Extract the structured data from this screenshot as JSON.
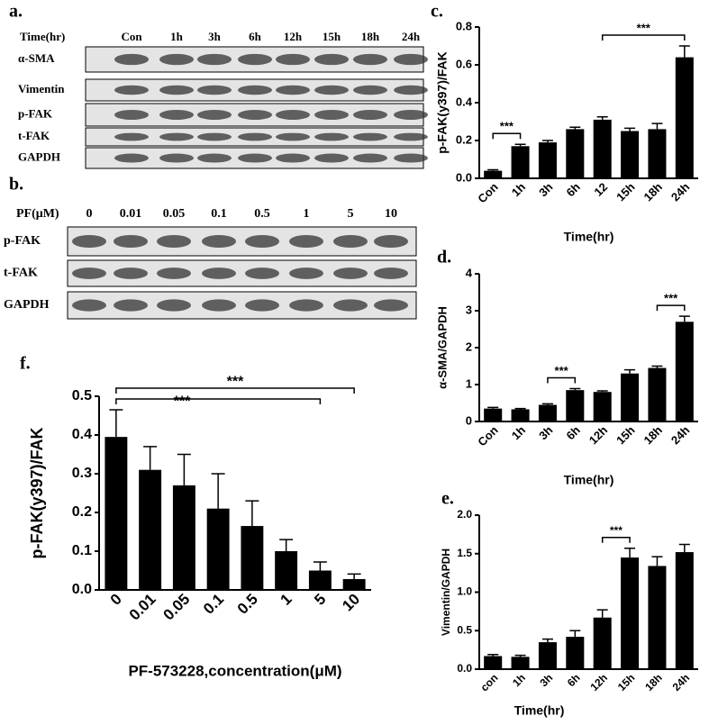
{
  "blots": [
    {
      "label": "a.",
      "header": "Time(hr)",
      "columns": [
        "Con",
        "1h",
        "3h",
        "6h",
        "12h",
        "15h",
        "18h",
        "24h"
      ],
      "rows": [
        "α-SMA",
        "Vimentin",
        "p-FAK",
        "t-FAK",
        "GAPDH"
      ]
    },
    {
      "label": "b.",
      "header": "PF(μM)",
      "columns": [
        "0",
        "0.01",
        "0.05",
        "0.1",
        "0.5",
        "1",
        "5",
        "10"
      ],
      "rows": [
        "p-FAK",
        "t-FAK",
        "GAPDH"
      ]
    }
  ],
  "chart_data": [
    {
      "type": "bar",
      "label": "c.",
      "categories": [
        "Con",
        "1h",
        "3h",
        "6h",
        "12",
        "15h",
        "18h",
        "24h"
      ],
      "values": [
        0.04,
        0.17,
        0.19,
        0.26,
        0.31,
        0.25,
        0.26,
        0.64
      ],
      "errors": [
        0.005,
        0.01,
        0.01,
        0.01,
        0.015,
        0.015,
        0.03,
        0.06
      ],
      "color": "#000000",
      "ylim": [
        0,
        0.8
      ],
      "yticks": [
        {
          "value": 0,
          "label": "0.0"
        },
        0.2,
        0.4,
        0.6,
        0.8
      ],
      "x_label": "Time(hr)",
      "y_label": "p-FAK(y397)/FAK",
      "annotations": [
        {
          "text": "***",
          "from": "Con",
          "to": "1h"
        },
        {
          "text": "***",
          "from": "12",
          "to": "24h"
        }
      ]
    },
    {
      "type": "bar",
      "label": "d.",
      "categories": [
        "Con",
        "1h",
        "3h",
        "6h",
        "12h",
        "15h",
        "18h",
        "24h"
      ],
      "values": [
        0.35,
        0.33,
        0.45,
        0.85,
        0.8,
        1.3,
        1.45,
        2.7
      ],
      "errors": [
        0.03,
        0.02,
        0.03,
        0.04,
        0.03,
        0.1,
        0.05,
        0.15
      ],
      "color": "#000000",
      "ylim": [
        0,
        4
      ],
      "yticks": [
        0,
        1,
        2,
        3,
        4
      ],
      "x_label": "Time(hr)",
      "y_label": "α-SMA/GAPDH",
      "annotations": [
        {
          "text": "***",
          "from": "3h",
          "to": "6h"
        },
        {
          "text": "***",
          "from": "18h",
          "to": "24h"
        }
      ]
    },
    {
      "type": "bar",
      "label": "e.",
      "categories": [
        "con",
        "1h",
        "3h",
        "6h",
        "12h",
        "15h",
        "18h",
        "24h"
      ],
      "values": [
        0.17,
        0.16,
        0.35,
        0.42,
        0.67,
        1.45,
        1.34,
        1.52
      ],
      "errors": [
        0.02,
        0.02,
        0.04,
        0.08,
        0.1,
        0.12,
        0.12,
        0.1
      ],
      "color": "#000000",
      "ylim": [
        0,
        2
      ],
      "yticks": [
        {
          "value": 0,
          "label": "0.0"
        },
        0.5,
        {
          "value": 1,
          "label": "1.0"
        },
        1.5,
        {
          "value": 2,
          "label": "2.0"
        }
      ],
      "x_label": "Time(hr)",
      "y_label": "Vimentin/GAPDH",
      "annotations": [
        {
          "text": "***",
          "from": "12h",
          "to": "15h"
        }
      ]
    },
    {
      "type": "bar",
      "label": "f.",
      "categories": [
        "0",
        "0.01",
        "0.05",
        "0.1",
        "0.5",
        "1",
        "5",
        "10"
      ],
      "values": [
        0.395,
        0.31,
        0.27,
        0.21,
        0.165,
        0.1,
        0.05,
        0.028
      ],
      "errors": [
        0.07,
        0.06,
        0.08,
        0.09,
        0.065,
        0.03,
        0.022,
        0.013
      ],
      "color": "#000000",
      "ylim": [
        0,
        0.5
      ],
      "yticks": [
        {
          "value": 0,
          "label": "0.0"
        },
        0.1,
        0.2,
        0.3,
        0.4,
        0.5
      ],
      "x_label": "PF-573228,concentration(μM)",
      "y_label": "p-FAK(y397)/FAK",
      "annotations": [
        {
          "text": "***",
          "from": "0",
          "to": "5"
        },
        {
          "text": "***",
          "from": "0",
          "to": "10"
        }
      ]
    }
  ]
}
